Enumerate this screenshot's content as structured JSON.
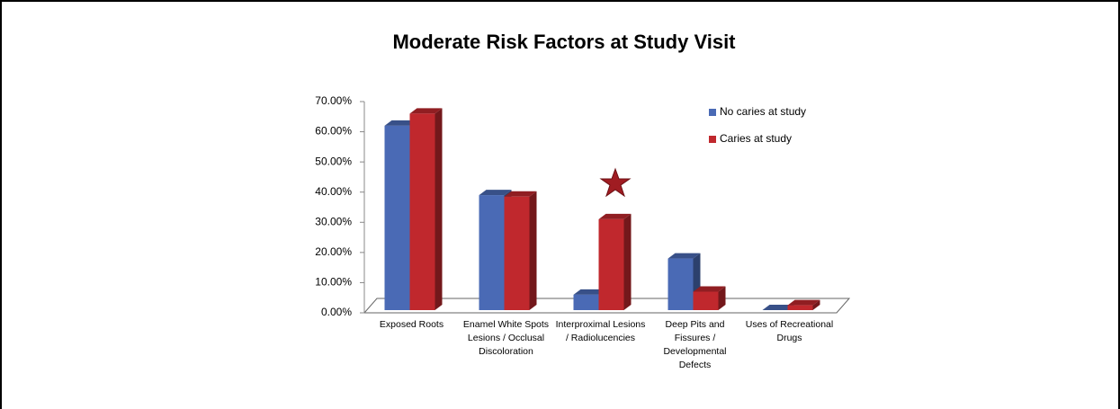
{
  "chart_data": {
    "type": "bar3d",
    "title": "Moderate Risk Factors at Study Visit",
    "categories": [
      "Exposed Roots",
      "Enamel White Spots Lesions / Occlusal Discoloration",
      "Interproximal Lesions / Radiolucencies",
      "Deep Pits and Fissures / Developmental Defects",
      "Uses of Recreational Drugs"
    ],
    "series": [
      {
        "name": "No caries at study",
        "color": "#4a6ab5",
        "values": [
          62,
          39,
          6,
          18,
          0
        ]
      },
      {
        "name": "Caries at study",
        "color": "#c0282d",
        "values": [
          66,
          38.5,
          31,
          7,
          2.5
        ]
      }
    ],
    "ylim": [
      0,
      70
    ],
    "yticks": [
      {
        "value": 0,
        "label": "0.00%"
      },
      {
        "value": 10,
        "label": "10.00%"
      },
      {
        "value": 20,
        "label": "20.00%"
      },
      {
        "value": 30,
        "label": "30.00%"
      },
      {
        "value": 40,
        "label": "40.00%"
      },
      {
        "value": 50,
        "label": "50.00%"
      },
      {
        "value": 60,
        "label": "60.00%"
      },
      {
        "value": 70,
        "label": "70.00%"
      }
    ],
    "legend": "top-right"
  }
}
